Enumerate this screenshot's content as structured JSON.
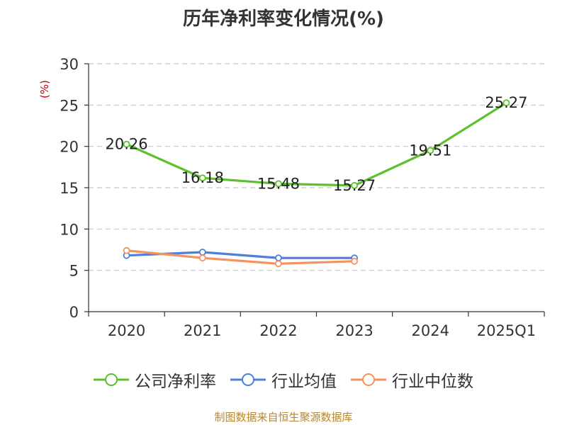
{
  "colors": {
    "company": "#5cc12c",
    "industry_avg": "#4f7fd9",
    "industry_median": "#f59262",
    "unit": "#cc0000",
    "source": "#b8862b"
  },
  "chart_data": {
    "type": "line",
    "title": "历年净利率变化情况(%)",
    "ylabel": "(%)",
    "categories": [
      "2020",
      "2021",
      "2022",
      "2023",
      "2024",
      "2025Q1"
    ],
    "ylim": [
      0,
      30
    ],
    "yticks": [
      "0",
      "5",
      "10",
      "15",
      "20",
      "25",
      "30"
    ],
    "grid": true,
    "legend_position": "bottom",
    "series": [
      {
        "name": "公司净利率",
        "values": [
          20.26,
          16.18,
          15.48,
          15.27,
          19.51,
          25.27
        ],
        "labels": [
          "20.26",
          "16.18",
          "15.48",
          "15.27",
          "19.51",
          "25.27"
        ]
      },
      {
        "name": "行业均值",
        "values": [
          6.8,
          7.2,
          6.5,
          6.5,
          null,
          null
        ]
      },
      {
        "name": "行业中位数",
        "values": [
          7.4,
          6.5,
          5.8,
          6.1,
          null,
          null
        ]
      }
    ]
  },
  "source": "制图数据来自恒生聚源数据库"
}
